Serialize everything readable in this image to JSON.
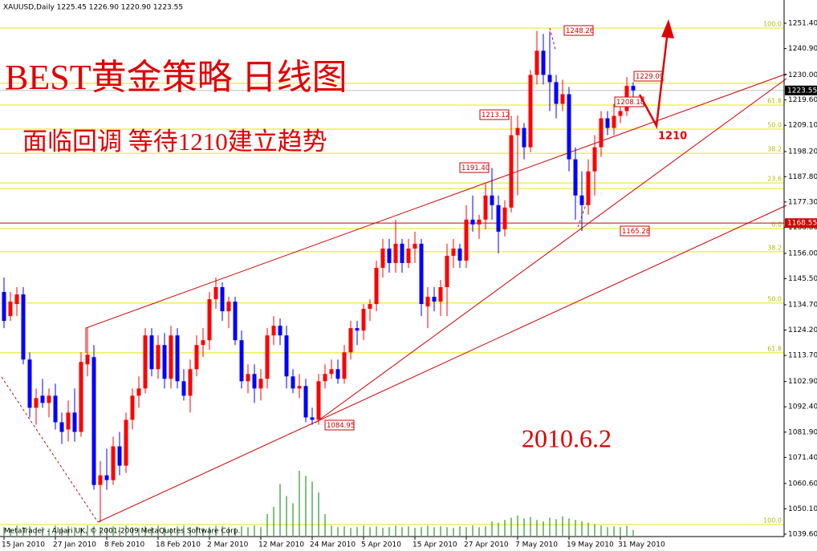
{
  "chart_data": {
    "type": "candlestick",
    "header": "XAUUSD,Daily  1225.45 1226.90 1220.90 1223.55",
    "title": "BEST黄金策略  日线图",
    "subtitle": "面临回调  等待1210建立趋势",
    "date_note": "2010.6.2",
    "target_note": "1210",
    "footer": "MetaTrader - Alpari UK, © 2001-2009 MetaQuotes Software Corp.",
    "categories": [
      "15 Jan 2010",
      null,
      null,
      null,
      null,
      null,
      null,
      null,
      "27 Jan 2010",
      null,
      null,
      null,
      null,
      null,
      null,
      null,
      "8 Feb 2010",
      null,
      null,
      null,
      null,
      null,
      null,
      null,
      "18 Feb 2010",
      null,
      null,
      null,
      null,
      null,
      null,
      null,
      "2 Mar 2010",
      null,
      null,
      null,
      null,
      null,
      null,
      null,
      "12 Mar 2010",
      null,
      null,
      null,
      null,
      null,
      null,
      null,
      "24 Mar 2010",
      null,
      null,
      null,
      null,
      null,
      null,
      null,
      "5 Apr 2010",
      null,
      null,
      null,
      null,
      null,
      null,
      null,
      "15 Apr 2010",
      null,
      null,
      null,
      null,
      null,
      null,
      null,
      "27 Apr 2010",
      null,
      null,
      null,
      null,
      null,
      null,
      null,
      "7 May 2010",
      null,
      null,
      null,
      null,
      null,
      null,
      null,
      "19 May 2010",
      null,
      null,
      null,
      null,
      null,
      null,
      null,
      "31 May 2010",
      null,
      null
    ],
    "open": [
      1140,
      1130,
      1135,
      1139,
      1112,
      1092,
      1097,
      1094,
      1097,
      1086,
      1083,
      1090,
      1082,
      1110,
      1113,
      1060,
      1064,
      1062,
      1076,
      1068,
      1087,
      1097,
      1100,
      1122,
      1108,
      1118,
      1104,
      1122,
      1103,
      1097,
      1108,
      1118,
      1120,
      1137,
      1142,
      1132,
      1136,
      1120,
      1103,
      1106,
      1100,
      1104,
      1122,
      1126,
      1122,
      1105,
      1100,
      1101,
      1088,
      1087,
      1103,
      1106,
      1108,
      1104,
      1115,
      1125,
      1124,
      1133,
      1135,
      1150,
      1158,
      1152,
      1160,
      1152,
      1158,
      1160,
      1134,
      1138,
      1136,
      1142,
      1155,
      1158,
      1153,
      1170,
      1168,
      1170,
      1180,
      1176,
      1166,
      1175,
      1205,
      1208,
      1200,
      1230,
      1240,
      1230,
      1227,
      1218,
      1222,
      1195,
      1180,
      1176,
      1190,
      1200,
      1212,
      1208,
      1213,
      1215,
      1225.45
    ],
    "high": [
      1146,
      1140,
      1142,
      1142,
      1115,
      1100,
      1104,
      1100,
      1102,
      1090,
      1095,
      1100,
      1115,
      1125,
      1118,
      1070,
      1075,
      1080,
      1082,
      1090,
      1100,
      1105,
      1125,
      1125,
      1122,
      1123,
      1126,
      1125,
      1108,
      1112,
      1122,
      1125,
      1140,
      1146,
      1144,
      1138,
      1138,
      1124,
      1110,
      1110,
      1108,
      1125,
      1130,
      1129,
      1126,
      1108,
      1106,
      1104,
      1092,
      1106,
      1110,
      1112,
      1112,
      1118,
      1128,
      1128,
      1135,
      1137,
      1153,
      1162,
      1162,
      1170,
      1162,
      1162,
      1165,
      1162,
      1142,
      1142,
      1145,
      1160,
      1162,
      1160,
      1176,
      1180,
      1172,
      1185,
      1191.4,
      1180,
      1178,
      1213,
      1213.12,
      1210,
      1232,
      1248.26,
      1247,
      1248,
      1230,
      1228,
      1225,
      1200,
      1190,
      1195,
      1205,
      1215,
      1215,
      1218,
      1217,
      1229.09,
      1226.9
    ],
    "low": [
      1125,
      1128,
      1130,
      1110,
      1088,
      1085,
      1092,
      1088,
      1083,
      1077,
      1078,
      1078,
      1080,
      1105,
      1058,
      1044.5,
      1058,
      1060,
      1064,
      1065,
      1083,
      1092,
      1098,
      1105,
      1104,
      1100,
      1100,
      1100,
      1095,
      1090,
      1105,
      1113,
      1116,
      1133,
      1128,
      1125,
      1118,
      1100,
      1098,
      1094,
      1095,
      1100,
      1118,
      1118,
      1100,
      1098,
      1096,
      1086,
      1084.95,
      1085,
      1100,
      1104,
      1102,
      1102,
      1112,
      1118,
      1120,
      1128,
      1132,
      1146,
      1148,
      1148,
      1148,
      1150,
      1152,
      1130,
      1125,
      1132,
      1130,
      1130,
      1150,
      1150,
      1150,
      1165,
      1162,
      1166,
      1170,
      1156,
      1163,
      1173,
      1180,
      1195,
      1198,
      1226,
      1226,
      1215,
      1212,
      1215,
      1190,
      1170,
      1165.28,
      1172,
      1180,
      1196,
      1205,
      1205,
      1210,
      1213,
      1220.9
    ],
    "close": [
      1128,
      1136,
      1139,
      1112,
      1092,
      1096,
      1094,
      1097,
      1086,
      1082,
      1090,
      1082,
      1111,
      1114,
      1060,
      1064,
      1062,
      1076,
      1068,
      1087,
      1097,
      1100,
      1122,
      1108,
      1118,
      1104,
      1122,
      1103,
      1097,
      1108,
      1118,
      1120,
      1137,
      1142,
      1132,
      1136,
      1120,
      1103,
      1106,
      1100,
      1104,
      1122,
      1126,
      1122,
      1105,
      1100,
      1101,
      1088,
      1087,
      1103,
      1106,
      1108,
      1104,
      1115,
      1125,
      1124,
      1133,
      1135,
      1150,
      1158,
      1152,
      1160,
      1152,
      1158,
      1160,
      1135,
      1138,
      1136,
      1142,
      1155,
      1158,
      1153,
      1170,
      1168,
      1170,
      1180,
      1176,
      1165,
      1175,
      1205,
      1208,
      1200,
      1230,
      1240,
      1230,
      1227,
      1218,
      1222,
      1195,
      1180,
      1176,
      1190,
      1200,
      1212,
      1208,
      1213,
      1215,
      1225.45,
      1223.55
    ],
    "volume": [
      12,
      10,
      14,
      12,
      13,
      11,
      12,
      10,
      14,
      12,
      13,
      12,
      11,
      14,
      13,
      12,
      11,
      13,
      12,
      14,
      12,
      11,
      13,
      12,
      14,
      12,
      11,
      13,
      14,
      12,
      13,
      11,
      12,
      14,
      13,
      12,
      11,
      13,
      12,
      14,
      12,
      30,
      40,
      72,
      55,
      45,
      90,
      83,
      75,
      60,
      30,
      14,
      12,
      13,
      11,
      12,
      14,
      12,
      13,
      11,
      12,
      14,
      12,
      13,
      11,
      12,
      14,
      12,
      13,
      12,
      11,
      13,
      12,
      14,
      12,
      13,
      20,
      18,
      22,
      25,
      28,
      24,
      26,
      22,
      20,
      25,
      23,
      27,
      24,
      22,
      20,
      18,
      16,
      14,
      12,
      13,
      12,
      14,
      8
    ],
    "vlim": [
      0,
      100
    ],
    "up_color": "#ff0000",
    "down_color": "#0000ff",
    "volume_color": "#008000",
    "fib_color": "#e8e800",
    "ylim": [
      1039.6,
      1251.4
    ],
    "yticks": [
      {
        "value": 1251.4,
        "label": "1251.40"
      },
      {
        "value": 1240.9,
        "label": "1240.90"
      },
      {
        "value": 1230,
        "label": "1230.00"
      },
      {
        "value": 1219.6,
        "label": "1219.60"
      },
      {
        "value": 1209.1,
        "label": "1209.10"
      },
      {
        "value": 1198.2,
        "label": "1198.20"
      },
      {
        "value": 1187.8,
        "label": "1187.80"
      },
      {
        "value": 1177.3,
        "label": "1177.30"
      },
      {
        "value": 1166.8,
        "label": "1166.80"
      },
      {
        "value": 1156,
        "label": "1156.00"
      },
      {
        "value": 1145.5,
        "label": "1145.50"
      },
      {
        "value": 1134.7,
        "label": "1134.70"
      },
      {
        "value": 1124.2,
        "label": "1124.20"
      },
      {
        "value": 1113.7,
        "label": "1113.70"
      },
      {
        "value": 1102.9,
        "label": "1102.90"
      },
      {
        "value": 1092.4,
        "label": "1092.40"
      },
      {
        "value": 1081.9,
        "label": "1081.90"
      },
      {
        "value": 1071.4,
        "label": "1071.40"
      },
      {
        "value": 1060.6,
        "label": "1060.60"
      },
      {
        "value": 1050.1,
        "label": "1050.10"
      },
      {
        "value": 1039.6,
        "label": "1039.60"
      }
    ],
    "current_price": 1223.55,
    "marked_level": 1168.55,
    "fib_levels": [
      {
        "price": 1249.4,
        "label": "100.0"
      },
      {
        "price": 1226.5,
        "label": null
      },
      {
        "price": 1217.5,
        "label": "61.8"
      },
      {
        "price": 1207.5,
        "label": "50.0"
      },
      {
        "price": 1197.5,
        "label": "38.2"
      },
      {
        "price": 1185.2,
        "label": "23.6"
      },
      {
        "price": 1182.9,
        "label": null
      },
      {
        "price": 1166.3,
        "label": "0.0"
      },
      {
        "price": 1156.7,
        "label": "38.2"
      },
      {
        "price": 1135.4,
        "label": "50.0"
      },
      {
        "price": 1114.8,
        "label": "61.8"
      },
      {
        "price": 1043.6,
        "label": "100.0"
      }
    ],
    "price_notes": [
      "1248.26",
      "1229.09",
      "1213.12",
      "1208.18",
      "1191.40",
      "1084.95",
      "1165.28"
    ]
  }
}
